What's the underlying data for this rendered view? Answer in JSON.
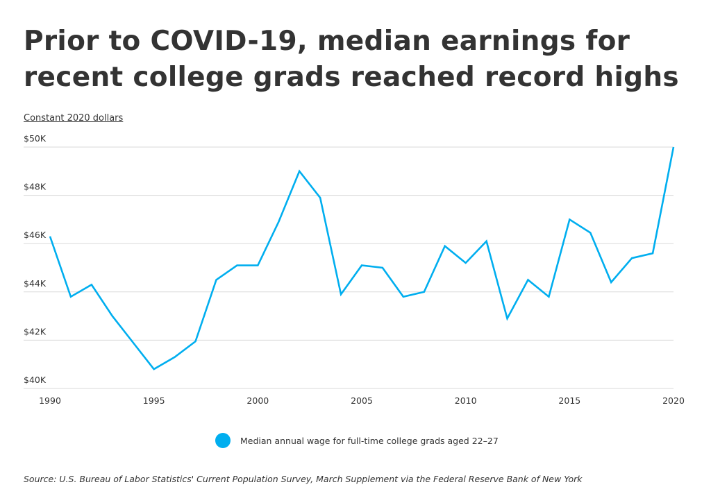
{
  "title": "Prior to COVID-19, median earnings for recent college grads reached record highs",
  "source": "Source:  U.S. Bureau of Labor Statistics' Current Population Survey, March Supplement via the Federal Reserve Bank of New York",
  "chart_data": {
    "type": "line",
    "title": "Prior to COVID-19, median earnings for recent college grads reached record highs",
    "ylabel": "Constant 2020 dollars",
    "xlabel": "",
    "x": [
      1990,
      1991,
      1992,
      1993,
      1994,
      1995,
      1996,
      1997,
      1998,
      1999,
      2000,
      2001,
      2002,
      2003,
      2004,
      2005,
      2006,
      2007,
      2008,
      2009,
      2010,
      2011,
      2012,
      2013,
      2014,
      2015,
      2016,
      2017,
      2018,
      2019,
      2020
    ],
    "series": [
      {
        "name": "Median annual wage for full-time college grads aged 22–27",
        "color": "#00AEEF",
        "values": [
          46300,
          43800,
          44300,
          43000,
          41900,
          40800,
          41300,
          41950,
          44500,
          45100,
          45100,
          46900,
          49000,
          47900,
          43900,
          45100,
          45000,
          43800,
          44000,
          45900,
          45200,
          46100,
          42900,
          44500,
          43800,
          47000,
          46450,
          44400,
          45400,
          45600,
          50000
        ]
      }
    ],
    "xlim": [
      1990,
      2020
    ],
    "ylim": [
      40000,
      50000
    ],
    "xticks": [
      1990,
      1995,
      2000,
      2005,
      2010,
      2015,
      2020
    ],
    "xtick_labels": [
      "1990",
      "1995",
      "2000",
      "2005",
      "2010",
      "2015",
      "2020"
    ],
    "yticks": [
      40000,
      42000,
      44000,
      46000,
      48000,
      50000
    ],
    "ytick_labels": [
      "$40K",
      "$42K",
      "$44K",
      "$46K",
      "$48K",
      "$50K"
    ],
    "grid": true,
    "legend": "bottom-center"
  }
}
